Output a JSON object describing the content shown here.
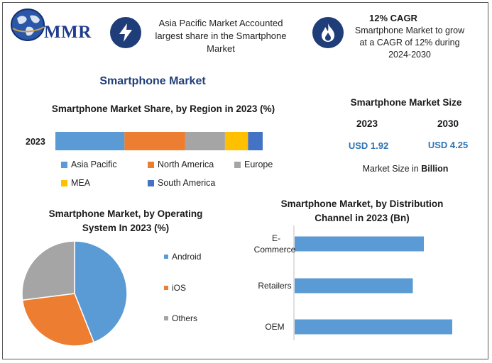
{
  "logo": {
    "text": "MMR"
  },
  "header": {
    "box1": {
      "text": "Asia Pacific Market Accounted largest share in the Smartphone Market"
    },
    "box2": {
      "title": "12% CAGR",
      "text": "Smartphone Market to grow at a CAGR of 12% during 2024-2030"
    }
  },
  "main_title": "Smartphone Market",
  "market_size": {
    "title": "Smartphone Market Size",
    "years": [
      "2023",
      "2030"
    ],
    "values": [
      "USD 1.92",
      "USD 4.25"
    ],
    "note_prefix": "Market Size in ",
    "note_bold": "Billion"
  },
  "colors": {
    "Asia Pacific": "#5b9bd5",
    "North America": "#ed7d31",
    "Europe": "#a5a5a5",
    "MEA": "#ffc000",
    "South America": "#4472c4",
    "header_circle": "#1f3e79"
  },
  "chart_data": [
    {
      "type": "bar",
      "stacked": true,
      "orientation": "horizontal",
      "title": "Smartphone Market Share, by Region in 2023 (%)",
      "categories": [
        "2023"
      ],
      "series": [
        {
          "name": "Asia Pacific",
          "values": [
            33
          ]
        },
        {
          "name": "North America",
          "values": [
            29
          ]
        },
        {
          "name": "Europe",
          "values": [
            19
          ]
        },
        {
          "name": "MEA",
          "values": [
            11
          ]
        },
        {
          "name": "South America",
          "values": [
            7
          ]
        }
      ],
      "legend": "bottom"
    },
    {
      "type": "pie",
      "title": "Smartphone Market, by Operating System In 2023 (%)",
      "labels": [
        "Android",
        "iOS",
        "Others"
      ],
      "values": [
        44,
        29,
        27
      ],
      "colors": [
        "#5b9bd5",
        "#ed7d31",
        "#a5a5a5"
      ],
      "legend": "right"
    },
    {
      "type": "bar",
      "orientation": "horizontal",
      "title": "Smartphone Market, by Distribution Channel in 2023 (Bn)",
      "categories": [
        "E-Commerce",
        "Retailers",
        "OEM"
      ],
      "category_lines": [
        [
          "E-",
          "Commerce"
        ],
        [
          "Retailers"
        ],
        [
          "OEM"
        ]
      ],
      "values": [
        0.82,
        0.75,
        1.0
      ],
      "color": "#5b9bd5"
    }
  ]
}
